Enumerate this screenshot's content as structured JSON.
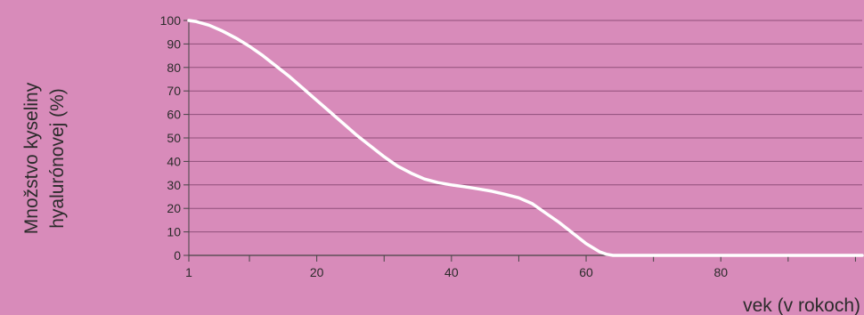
{
  "chart_data": {
    "type": "line",
    "title": "",
    "ylabel_lines": [
      "Množstvo kyseliny",
      "hyalurónovej (%)"
    ],
    "xlabel": "vek (v rokoch)",
    "xlim": [
      1,
      101
    ],
    "ylim": [
      0,
      100
    ],
    "x_ticks": [
      1,
      20,
      40,
      60,
      80
    ],
    "x_minor_ticks": [
      10,
      30,
      50,
      70,
      90,
      100
    ],
    "y_ticks": [
      0,
      10,
      20,
      30,
      40,
      50,
      60,
      70,
      80,
      90,
      100
    ],
    "grid": "horizontal",
    "colors": {
      "background": "#d88bba",
      "line": "#ffffff",
      "grid": "#8f4f7a",
      "axis": "#444444",
      "text": "#2b2b2b"
    },
    "series": [
      {
        "x": [
          1,
          2,
          4,
          6,
          8,
          10,
          12,
          14,
          16,
          18,
          20,
          22,
          24,
          26,
          28,
          30,
          31,
          32,
          34,
          36,
          38,
          40,
          42,
          44,
          46,
          48,
          50,
          52,
          54,
          56,
          58,
          60,
          62,
          63,
          64,
          65,
          70,
          80,
          90,
          101
        ],
        "values": [
          100,
          99.6,
          98,
          95.5,
          92.5,
          89,
          85,
          80.5,
          76,
          71,
          66,
          61,
          56,
          51,
          46.5,
          42,
          40,
          38,
          35,
          32.5,
          31,
          30,
          29.2,
          28.3,
          27.3,
          26,
          24.5,
          22,
          18,
          14,
          9.5,
          5,
          1.5,
          0.5,
          0,
          0,
          0,
          0,
          0,
          0
        ]
      }
    ]
  }
}
